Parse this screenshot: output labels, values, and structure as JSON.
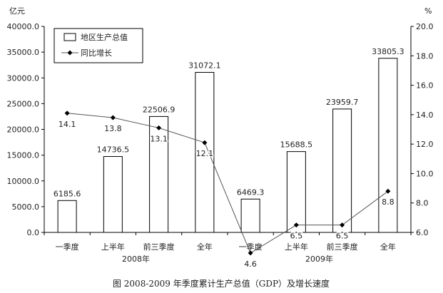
{
  "chart_data": {
    "type": "bar+line",
    "caption": "图 2008-2009 年季度累计生产总值（GDP）及增长速度",
    "left_axis": {
      "unit": "亿元",
      "ylim": [
        0,
        40000
      ],
      "step": 5000,
      "ticks": [
        "0.0",
        "5000.0",
        "10000.0",
        "15000.0",
        "20000.0",
        "25000.0",
        "30000.0",
        "35000.0",
        "40000.0"
      ]
    },
    "right_axis": {
      "unit": "%",
      "ylim": [
        6,
        20
      ],
      "step": 2,
      "ticks": [
        "6.0",
        "8.0",
        "10.0",
        "12.0",
        "14.0",
        "16.0",
        "18.0",
        "20.0"
      ]
    },
    "categories": [
      "一季度",
      "上半年",
      "前三季度",
      "全年",
      "一季度",
      "上半年",
      "前三季度",
      "全年"
    ],
    "groups": [
      {
        "label": "2008年",
        "span": [
          0,
          3
        ]
      },
      {
        "label": "2009年",
        "span": [
          4,
          7
        ]
      }
    ],
    "series": [
      {
        "name": "地区生产总值",
        "kind": "bar",
        "axis": "left",
        "values": [
          6185.6,
          14736.5,
          22506.9,
          31072.1,
          6469.3,
          15688.5,
          23959.7,
          33805.3
        ],
        "labels": [
          "6185.6",
          "14736.5",
          "22506.9",
          "31072.1",
          "6469.3",
          "15688.5",
          "23959.7",
          "33805.3"
        ]
      },
      {
        "name": "同比增长",
        "kind": "line",
        "axis": "right",
        "values": [
          14.1,
          13.8,
          13.1,
          12.1,
          4.6,
          6.5,
          6.5,
          8.8
        ],
        "labels": [
          "14.1",
          "13.8",
          "13.1",
          "12.1",
          "4.6",
          "6.5",
          "6.5",
          "8.8"
        ]
      }
    ],
    "legend_position": "top-left"
  }
}
